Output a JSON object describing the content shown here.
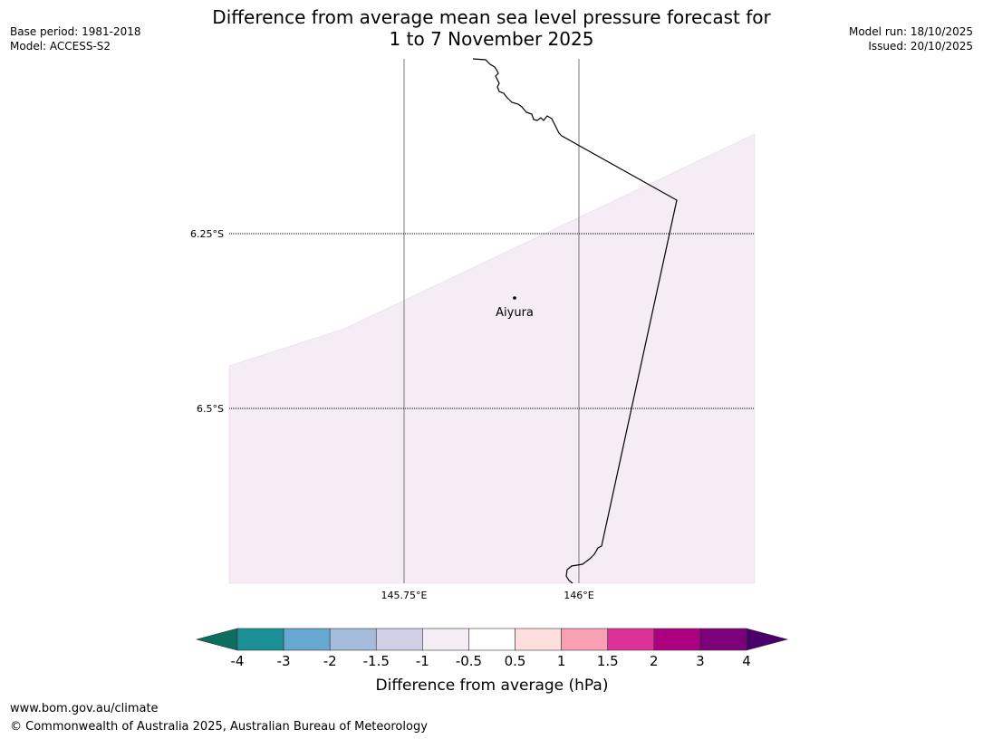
{
  "header": {
    "title_line1": "Difference from average mean sea level pressure forecast for",
    "title_line2": "1 to 7 November 2025",
    "base_period": "Base period: 1981-2018",
    "model": "Model: ACCESS-S2",
    "model_run": "Model run: 18/10/2025",
    "issued": "Issued: 20/10/2025"
  },
  "map": {
    "lat_labels": [
      "6.25°S",
      "6.5°S"
    ],
    "lon_labels": [
      "145.75°E",
      "146°E"
    ],
    "place": {
      "name": "Aiyura"
    },
    "colors": {
      "shading": "#f5ecf5",
      "coast": "#000000",
      "gridline": "#555555"
    }
  },
  "colorbar": {
    "label": "Difference from average (hPa)",
    "tick_labels": [
      "-4",
      "-3",
      "-2",
      "-1.5",
      "-1",
      "-0.5",
      "0.5",
      "1",
      "1.5",
      "2",
      "3",
      "4"
    ],
    "colors": {
      "under": "#0c6e5f",
      "bins": [
        "#1b9097",
        "#66a8d0",
        "#a6bcdc",
        "#d0cfe6",
        "#f5ecf5",
        "#ffffff",
        "#ffdfdd",
        "#f9a0b5",
        "#dc3197",
        "#ac007e",
        "#7b0079"
      ],
      "over": "#4a006a"
    }
  },
  "footer": {
    "url": "www.bom.gov.au/climate",
    "copyright": "© Commonwealth of Australia 2025, Australian Bureau of Meteorology"
  }
}
